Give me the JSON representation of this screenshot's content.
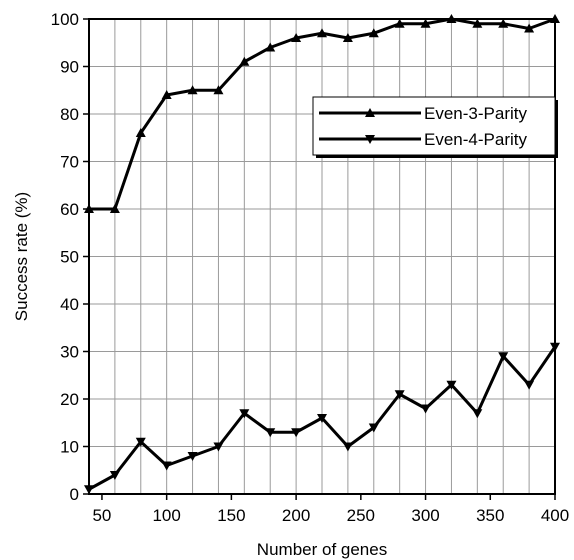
{
  "chart_data": {
    "type": "line",
    "title": "",
    "xlabel": "Number of genes",
    "ylabel": "Success rate (%)",
    "xlim": [
      40,
      400
    ],
    "ylim": [
      0,
      100
    ],
    "x_ticks": [
      50,
      100,
      150,
      200,
      250,
      300,
      350,
      400
    ],
    "x_tick_labels": [
      "50",
      "100",
      "150",
      "200",
      "250",
      "300",
      "350",
      "400"
    ],
    "y_ticks": [
      0,
      10,
      20,
      30,
      40,
      50,
      60,
      70,
      80,
      90,
      100
    ],
    "y_tick_labels": [
      "0",
      "10",
      "20",
      "30",
      "40",
      "50",
      "60",
      "70",
      "80",
      "90",
      "100"
    ],
    "x_grid_step": 20,
    "grid": true,
    "legend_position": "top-right",
    "x": [
      40,
      60,
      80,
      100,
      120,
      140,
      160,
      180,
      200,
      220,
      240,
      260,
      280,
      300,
      320,
      340,
      360,
      380,
      400
    ],
    "series": [
      {
        "name": "Even-3-Parity",
        "marker": "triangle-up",
        "color": "#000000",
        "values": [
          60,
          60,
          76,
          84,
          85,
          85,
          91,
          94,
          96,
          97,
          96,
          97,
          99,
          99,
          100,
          99,
          99,
          98,
          100
        ]
      },
      {
        "name": "Even-4-Parity",
        "marker": "triangle-down",
        "color": "#000000",
        "values": [
          1,
          4,
          11,
          6,
          8,
          10,
          17,
          13,
          13,
          16,
          10,
          14,
          21,
          18,
          23,
          17,
          29,
          23,
          31
        ]
      }
    ]
  }
}
